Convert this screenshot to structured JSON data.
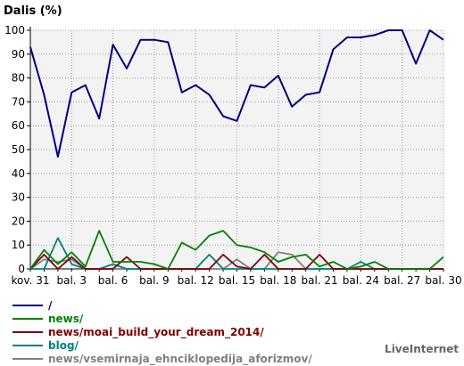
{
  "chart_data": {
    "type": "line",
    "ylabel": "Dalis (%)",
    "ylim": [
      0,
      100
    ],
    "y_ticks": [
      0,
      10,
      20,
      30,
      40,
      50,
      60,
      70,
      80,
      90,
      100
    ],
    "grid": true,
    "x_tick_labels": [
      "kov. 31",
      "bal. 3",
      "bal. 6",
      "bal. 9",
      "bal. 12",
      "bal. 15",
      "bal. 18",
      "bal. 21",
      "bal. 24",
      "bal. 27",
      "bal. 30"
    ],
    "x_tick_positions": [
      0,
      3,
      6,
      9,
      12,
      15,
      18,
      21,
      24,
      27,
      30
    ],
    "series": [
      {
        "name": "/",
        "color": "#000080",
        "values": [
          93,
          73,
          47,
          74,
          77,
          63,
          94,
          84,
          96,
          96,
          95,
          74,
          77,
          73,
          64,
          62,
          77,
          76,
          81,
          68,
          73,
          74,
          92,
          97,
          97,
          98,
          100,
          100,
          86,
          100,
          96
        ]
      },
      {
        "name": "news/",
        "color": "#008000",
        "values": [
          0,
          8,
          2,
          7,
          1,
          16,
          3,
          3,
          3,
          2,
          0,
          11,
          8,
          14,
          16,
          10,
          9,
          7,
          3,
          5,
          6,
          1,
          3,
          0,
          1,
          3,
          0,
          0,
          0,
          0,
          5
        ]
      },
      {
        "name": "news/moai_build_your_dream_2014/",
        "color": "#800000",
        "values": [
          0,
          6,
          0,
          5,
          0,
          0,
          0,
          5,
          0,
          0,
          0,
          0,
          0,
          0,
          6,
          1,
          0,
          6,
          0,
          0,
          0,
          6,
          0,
          0,
          0,
          0,
          0,
          0,
          0,
          0,
          0
        ]
      },
      {
        "name": "blog/",
        "color": "#008080",
        "values": [
          0,
          0,
          13,
          2,
          0,
          0,
          2,
          0,
          0,
          0,
          0,
          0,
          0,
          6,
          0,
          0,
          0,
          0,
          0,
          0,
          0,
          0,
          0,
          0,
          3,
          0,
          0,
          0,
          0,
          0,
          0
        ]
      },
      {
        "name": "news/vsemirnaja_ehnciklopedija_aforizmov/",
        "color": "#808080",
        "values": [
          0,
          4,
          3,
          4,
          0,
          0,
          0,
          0,
          0,
          0,
          0,
          0,
          0,
          0,
          0,
          4,
          0,
          0,
          7,
          6,
          0,
          0,
          0,
          0,
          0,
          0,
          0,
          0,
          0,
          0,
          0
        ]
      }
    ]
  },
  "credit": "LiveInternet"
}
